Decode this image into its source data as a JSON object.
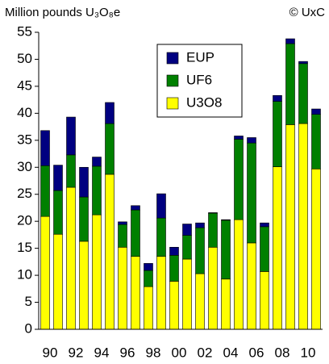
{
  "chart_data": {
    "type": "stacked_bar",
    "subtitle": "Million pounds U₃O₈e",
    "annotation": "© UxC",
    "categories": [
      "90",
      null,
      "92",
      null,
      "94",
      null,
      "96",
      null,
      "98",
      null,
      "00",
      null,
      "02",
      null,
      "04",
      null,
      "06",
      null,
      "08",
      null,
      "10",
      null
    ],
    "series": [
      {
        "name": "U3O8",
        "color": "#ffff00",
        "values": [
          20.9,
          17.6,
          26.3,
          16.3,
          21.2,
          28.7,
          15.2,
          13.5,
          7.9,
          13.5,
          8.9,
          13.0,
          10.3,
          15.2,
          9.3,
          20.3,
          16.0,
          10.7,
          30.1,
          37.9,
          38.1,
          29.7
        ]
      },
      {
        "name": "UF6",
        "color": "#008000",
        "values": [
          9.4,
          8.1,
          6.0,
          8.2,
          9.0,
          9.4,
          4.2,
          8.6,
          3.0,
          7.1,
          4.8,
          4.4,
          8.5,
          6.3,
          10.9,
          14.9,
          18.5,
          8.3,
          12.1,
          15.0,
          11.1,
          10.1
        ]
      },
      {
        "name": "EUP",
        "color": "#000080",
        "values": [
          6.5,
          4.7,
          7.0,
          5.5,
          1.7,
          3.9,
          0.5,
          0.8,
          1.3,
          4.5,
          1.5,
          2.1,
          0.9,
          0.1,
          0.1,
          0.6,
          1.0,
          0.7,
          1.1,
          0.9,
          0.4,
          1.0
        ]
      }
    ],
    "ylim": [
      0,
      55
    ],
    "yticks": [
      0,
      5,
      10,
      15,
      20,
      25,
      30,
      35,
      40,
      45,
      50,
      55
    ],
    "legend": "top-center",
    "grid": false
  }
}
